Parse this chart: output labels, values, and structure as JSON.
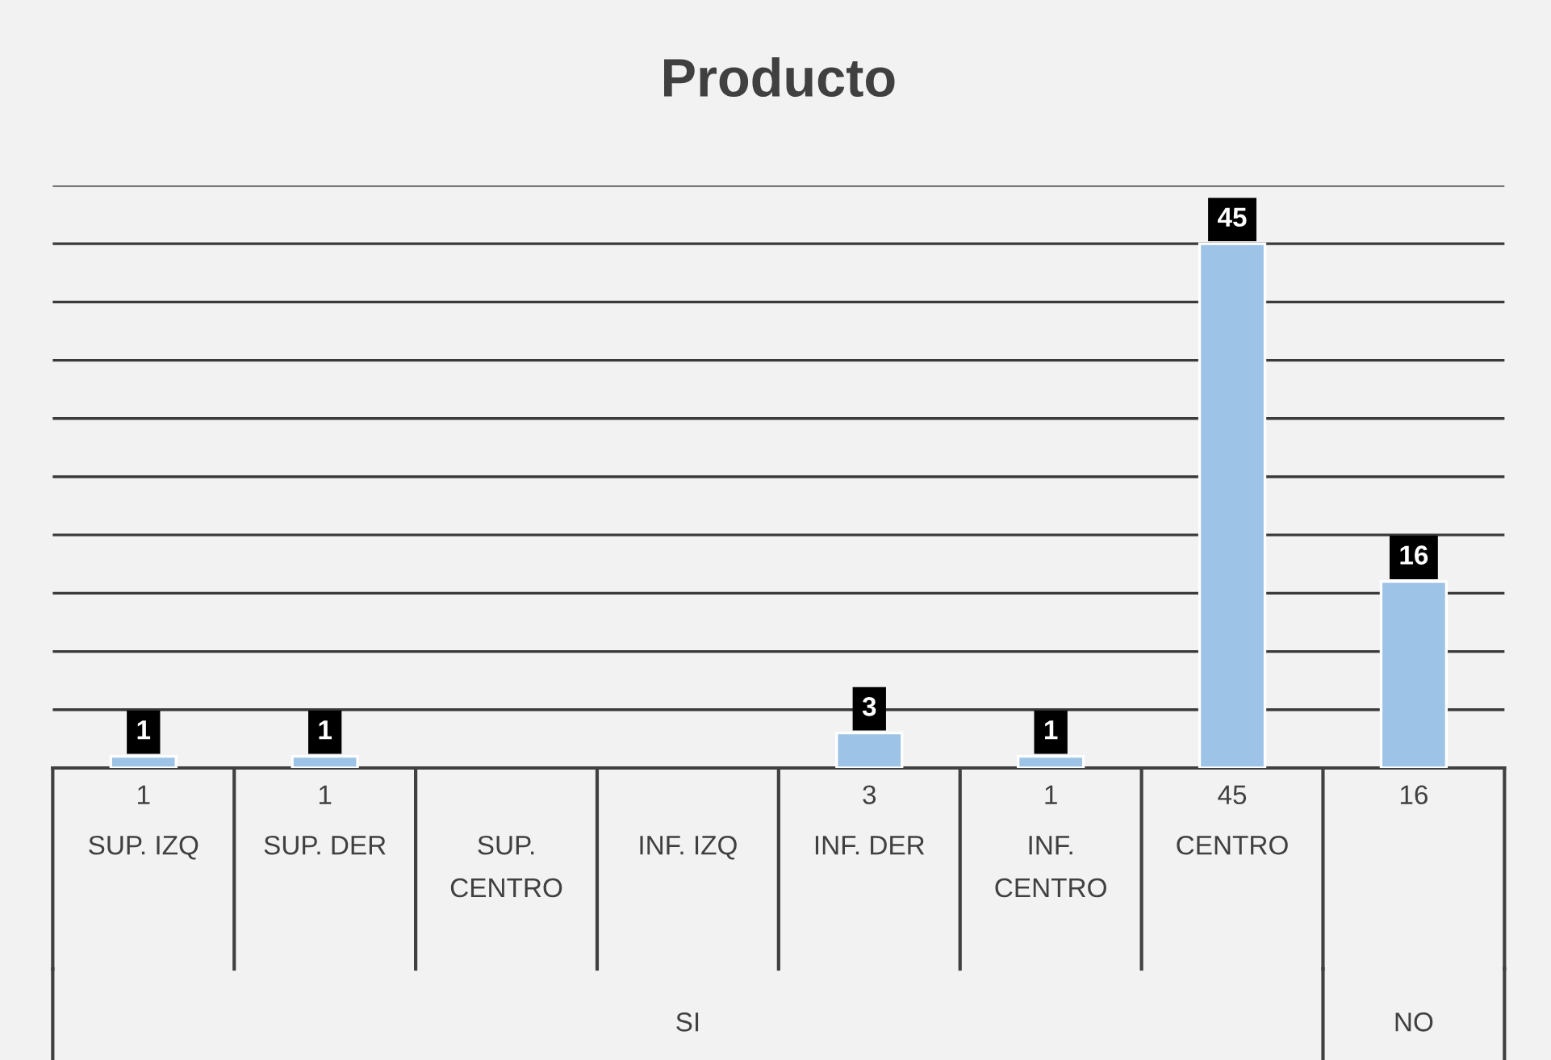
{
  "chart_data": {
    "type": "bar",
    "title": "Producto",
    "categories": [
      "SUP. IZQ",
      "SUP. DER",
      "SUP. CENTRO",
      "INF. IZQ",
      "INF. DER",
      "INF. CENTRO",
      "CENTRO",
      null
    ],
    "values": [
      1,
      1,
      null,
      null,
      3,
      1,
      45,
      16
    ],
    "color": "#9dc3e6",
    "ylim": [
      0,
      50
    ],
    "yticks": [
      {
        "value": 0,
        "label": null
      },
      {
        "value": 5,
        "label": null
      },
      {
        "value": 10,
        "label": null
      },
      {
        "value": 15,
        "label": null
      },
      {
        "value": 20,
        "label": null
      },
      {
        "value": 25,
        "label": null
      },
      {
        "value": 30,
        "label": null
      },
      {
        "value": 35,
        "label": null
      },
      {
        "value": 40,
        "label": null
      },
      {
        "value": 45,
        "label": null
      },
      {
        "value": 50,
        "label": null
      }
    ],
    "grid": "y",
    "value_labels": [
      "1",
      "1",
      null,
      null,
      "3",
      "1",
      "45",
      "16"
    ],
    "annotations": [
      "1",
      "1",
      "3",
      "1",
      "45",
      "16",
      "SI",
      "NO"
    ]
  }
}
